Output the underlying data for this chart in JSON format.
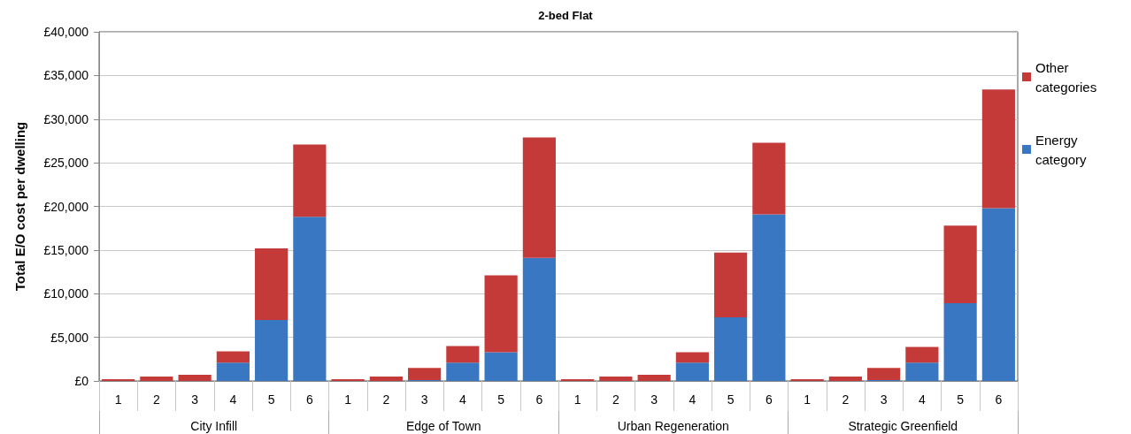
{
  "chart_data": {
    "type": "bar",
    "title": "2-bed Flat",
    "ylabel": "Total E/O cost per dwelling",
    "categories": [
      "1",
      "2",
      "3",
      "4",
      "5",
      "6",
      "1",
      "2",
      "3",
      "4",
      "5",
      "6",
      "1",
      "2",
      "3",
      "4",
      "5",
      "6",
      "1",
      "2",
      "3",
      "4",
      "5",
      "6"
    ],
    "annotations": [
      "City Infill",
      "Edge of Town",
      "Urban Regeneration",
      "Strategic Greenfield"
    ],
    "stacked": true,
    "series": [
      {
        "name": "Energy category",
        "color": "#3a77c2",
        "values": [
          0,
          0,
          0,
          2100,
          7000,
          18800,
          0,
          0,
          100,
          2100,
          3300,
          14100,
          0,
          0,
          0,
          2100,
          7300,
          19100,
          0,
          0,
          100,
          2100,
          8900,
          19800
        ]
      },
      {
        "name": "Other categories",
        "color": "#c43a38",
        "values": [
          200,
          500,
          700,
          1300,
          8200,
          8300,
          200,
          500,
          1400,
          1900,
          8800,
          13800,
          200,
          500,
          700,
          1200,
          7400,
          8200,
          200,
          500,
          1400,
          1800,
          8900,
          13600
        ]
      }
    ],
    "ylim": [
      0,
      40000
    ],
    "yticks": [
      {
        "value": 0,
        "label": "£0"
      },
      {
        "value": 5000,
        "label": "£5,000"
      },
      {
        "value": 10000,
        "label": "£10,000"
      },
      {
        "value": 15000,
        "label": "£15,000"
      },
      {
        "value": 20000,
        "label": "£20,000"
      },
      {
        "value": 25000,
        "label": "£25,000"
      },
      {
        "value": 30000,
        "label": "£30,000"
      },
      {
        "value": 35000,
        "label": "£35,000"
      },
      {
        "value": 40000,
        "label": "£40,000"
      }
    ],
    "grid": "y",
    "legend": "right"
  }
}
